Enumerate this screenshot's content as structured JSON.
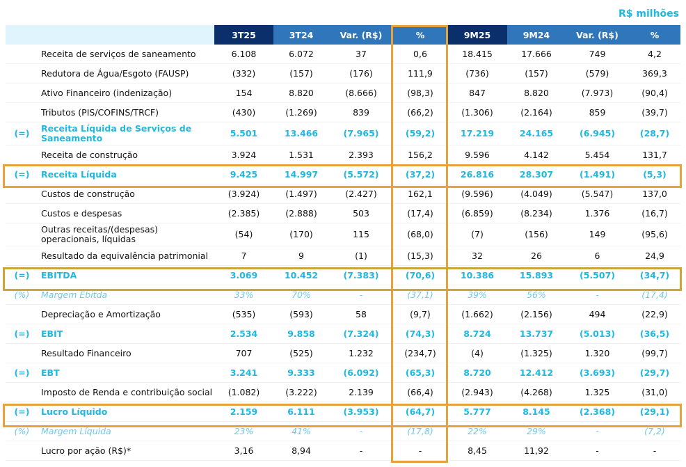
{
  "unit_label": "R$ milhões",
  "columns": [
    "3T25",
    "3T24",
    "Var. (R$)",
    "%",
    "9M25",
    "9M24",
    "Var. (R$)",
    "%"
  ],
  "rows": [
    {
      "sym": "",
      "label": "Receita de serviços de saneamento",
      "vals": [
        "6.108",
        "6.072",
        "37",
        "0,6",
        "18.415",
        "17.666",
        "749",
        "4,2"
      ]
    },
    {
      "sym": "",
      "label": "Redutora de Água/Esgoto (FAUSP)",
      "vals": [
        "(332)",
        "(157)",
        "(176)",
        "111,9",
        "(736)",
        "(157)",
        "(579)",
        "369,3"
      ]
    },
    {
      "sym": "",
      "label": "Ativo Financeiro (indenização)",
      "vals": [
        "154",
        "8.820",
        "(8.666)",
        "(98,3)",
        "847",
        "8.820",
        "(7.973)",
        "(90,4)"
      ]
    },
    {
      "sym": "",
      "label": "Tributos (PIS/COFINS/TRCF)",
      "vals": [
        "(430)",
        "(1.269)",
        "839",
        "(66,2)",
        "(1.306)",
        "(2.164)",
        "859",
        "(39,7)"
      ]
    },
    {
      "sym": "(=)",
      "label": "Receita Líquida de Serviços de Saneamento",
      "vals": [
        "5.501",
        "13.466",
        "(7.965)",
        "(59,2)",
        "17.219",
        "24.165",
        "(6.945)",
        "(28,7)"
      ],
      "style": "bold"
    },
    {
      "sym": "",
      "label": "Receita de construção",
      "vals": [
        "3.924",
        "1.531",
        "2.393",
        "156,2",
        "9.596",
        "4.142",
        "5.454",
        "131,7"
      ]
    },
    {
      "sym": "(=)",
      "label": "Receita Líquida",
      "vals": [
        "9.425",
        "14.997",
        "(5.572)",
        "(37,2)",
        "26.816",
        "28.307",
        "(1.491)",
        "(5,3)"
      ],
      "style": "bold"
    },
    {
      "sym": "",
      "label": "Custos de construção",
      "vals": [
        "(3.924)",
        "(1.497)",
        "(2.427)",
        "162,1",
        "(9.596)",
        "(4.049)",
        "(5.547)",
        "137,0"
      ]
    },
    {
      "sym": "",
      "label": "Custos e despesas",
      "vals": [
        "(2.385)",
        "(2.888)",
        "503",
        "(17,4)",
        "(6.859)",
        "(8.234)",
        "1.376",
        "(16,7)"
      ]
    },
    {
      "sym": "",
      "label": "Outras receitas/(despesas) operacionais, líquidas",
      "vals": [
        "(54)",
        "(170)",
        "115",
        "(68,0)",
        "(7)",
        "(156)",
        "149",
        "(95,6)"
      ]
    },
    {
      "sym": "",
      "label": "Resultado da equivalência patrimonial",
      "vals": [
        "7",
        "9",
        "(1)",
        "(15,3)",
        "32",
        "26",
        "6",
        "24,9"
      ]
    },
    {
      "sym": "(=)",
      "label": "EBITDA",
      "vals": [
        "3.069",
        "10.452",
        "(7.383)",
        "(70,6)",
        "10.386",
        "15.893",
        "(5.507)",
        "(34,7)"
      ],
      "style": "bold"
    },
    {
      "sym": "(%)",
      "label": "Margem Ebitda",
      "vals": [
        "33%",
        "70%",
        "-",
        "(37,1)",
        "39%",
        "56%",
        "-",
        "(17,4)"
      ],
      "style": "margin"
    },
    {
      "sym": "",
      "label": "Depreciação e Amortização",
      "vals": [
        "(535)",
        "(593)",
        "58",
        "(9,7)",
        "(1.662)",
        "(2.156)",
        "494",
        "(22,9)"
      ]
    },
    {
      "sym": "(=)",
      "label": "EBIT",
      "vals": [
        "2.534",
        "9.858",
        "(7.324)",
        "(74,3)",
        "8.724",
        "13.737",
        "(5.013)",
        "(36,5)"
      ],
      "style": "bold"
    },
    {
      "sym": "",
      "label": "Resultado Financeiro",
      "vals": [
        "707",
        "(525)",
        "1.232",
        "(234,7)",
        "(4)",
        "(1.325)",
        "1.320",
        "(99,7)"
      ]
    },
    {
      "sym": "(=)",
      "label": "EBT",
      "vals": [
        "3.241",
        "9.333",
        "(6.092)",
        "(65,3)",
        "8.720",
        "12.412",
        "(3.693)",
        "(29,7)"
      ],
      "style": "bold"
    },
    {
      "sym": "",
      "label": "Imposto de Renda e contribuição social",
      "vals": [
        "(1.082)",
        "(3.222)",
        "2.139",
        "(66,4)",
        "(2.943)",
        "(4.268)",
        "1.325",
        "(31,0)"
      ]
    },
    {
      "sym": "(=)",
      "label": "Lucro Líquido",
      "vals": [
        "2.159",
        "6.111",
        "(3.953)",
        "(64,7)",
        "5.777",
        "8.145",
        "(2.368)",
        "(29,1)"
      ],
      "style": "bold"
    },
    {
      "sym": "(%)",
      "label": "Margem Líquida",
      "vals": [
        "23%",
        "41%",
        "-",
        "(17,8)",
        "22%",
        "29%",
        "-",
        "(7,2)"
      ],
      "style": "margin"
    },
    {
      "sym": "",
      "label": "Lucro por ação (R$)*",
      "vals": [
        "3,16",
        "8,94",
        "-",
        "-",
        "8,45",
        "11,92",
        "-",
        "-"
      ]
    }
  ],
  "colors": {
    "accent_cyan": "#1fb8e0",
    "header_blue": "#2f76ba",
    "header_dark": "#0b2f6a",
    "highlight_orange": "#e6a23c",
    "highlight_olive": "#c9a63a"
  }
}
